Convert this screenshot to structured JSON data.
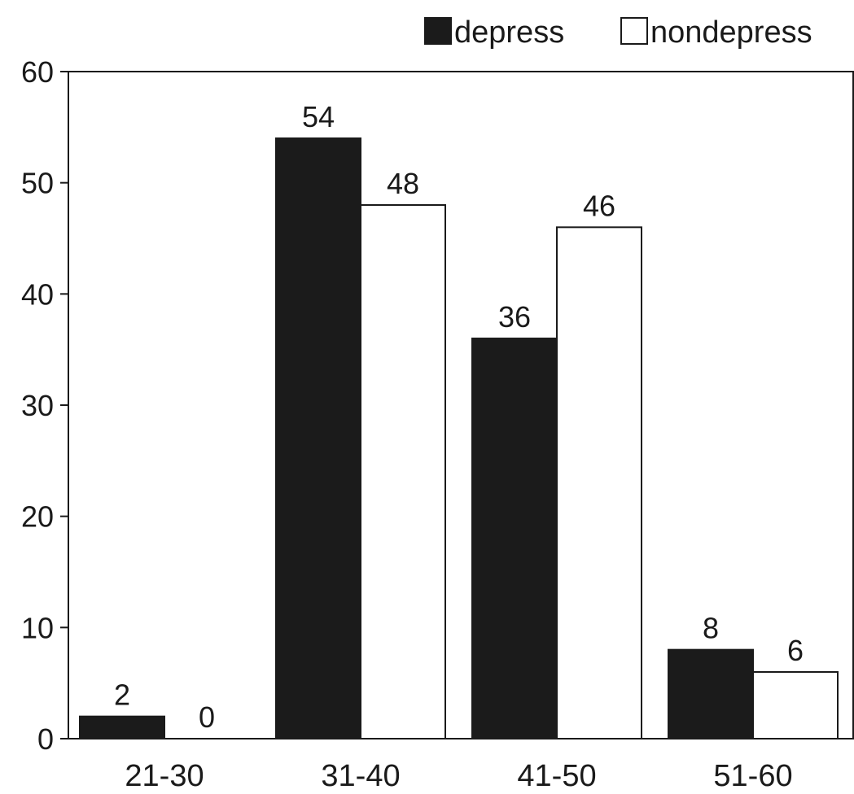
{
  "chart_data": {
    "type": "bar",
    "categories": [
      "21-30",
      "31-40",
      "41-50",
      "51-60"
    ],
    "series": [
      {
        "name": "depress",
        "values": [
          2,
          54,
          36,
          8
        ],
        "color": "#1b1b1b"
      },
      {
        "name": "nondepress",
        "values": [
          0,
          48,
          46,
          6
        ],
        "color": "#ffffff"
      }
    ],
    "title": "",
    "xlabel": "",
    "ylabel": "",
    "ylim": [
      0,
      60
    ],
    "yticks": [
      0,
      10,
      20,
      30,
      40,
      50,
      60
    ],
    "grid": false,
    "legend_position": "top-right",
    "data_labels": true
  }
}
